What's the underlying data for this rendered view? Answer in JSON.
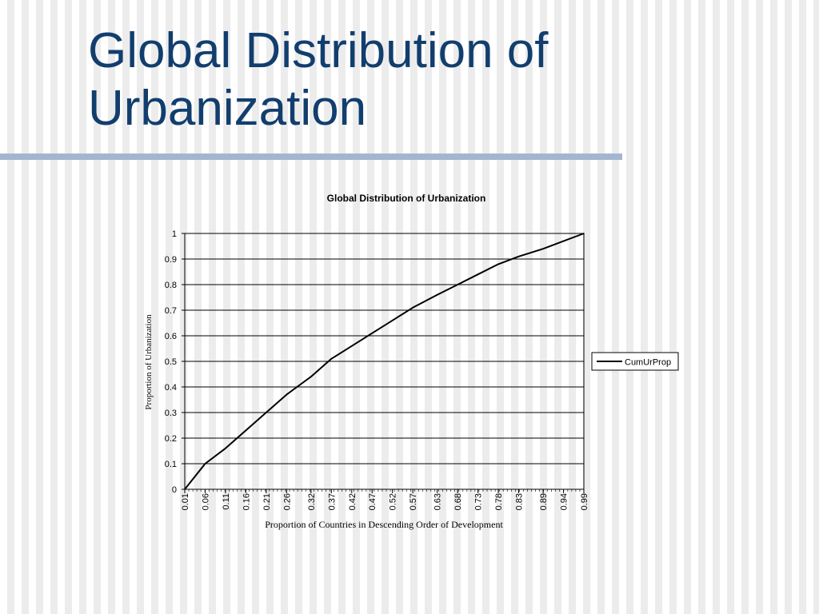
{
  "slide": {
    "title_line1": "Global Distribution of",
    "title_line2": "Urbanization"
  },
  "colors": {
    "title": "#123e6e",
    "rule": "#a3b6d0",
    "line": "#000000"
  },
  "chart_data": {
    "type": "line",
    "title": "Global Distribution of Urbanization",
    "xlabel": "Proportion of Countries in Descending Order of Development",
    "ylabel": "Proportion of Urbanization",
    "ylim": [
      0,
      1
    ],
    "yticks": [
      "0",
      "0.1",
      "0.2",
      "0.3",
      "0.4",
      "0.5",
      "0.6",
      "0.7",
      "0.8",
      "0.9",
      "1"
    ],
    "xticks": [
      "0.01",
      "0.06",
      "0.11",
      "0.16",
      "0.21",
      "0.26",
      "0.32",
      "0.37",
      "0.42",
      "0.47",
      "0.52",
      "0.57",
      "0.63",
      "0.68",
      "0.73",
      "0.78",
      "0.83",
      "0.89",
      "0.94",
      "0.99"
    ],
    "grid": "horizontal",
    "legend": "right",
    "series": [
      {
        "name": "CumUrProp",
        "x": [
          0.01,
          0.06,
          0.11,
          0.16,
          0.21,
          0.26,
          0.32,
          0.37,
          0.42,
          0.47,
          0.52,
          0.57,
          0.63,
          0.68,
          0.73,
          0.78,
          0.83,
          0.89,
          0.94,
          0.99
        ],
        "y": [
          0.0,
          0.1,
          0.16,
          0.23,
          0.3,
          0.37,
          0.44,
          0.51,
          0.56,
          0.61,
          0.66,
          0.71,
          0.76,
          0.8,
          0.84,
          0.88,
          0.91,
          0.94,
          0.97,
          1.0
        ]
      }
    ]
  }
}
